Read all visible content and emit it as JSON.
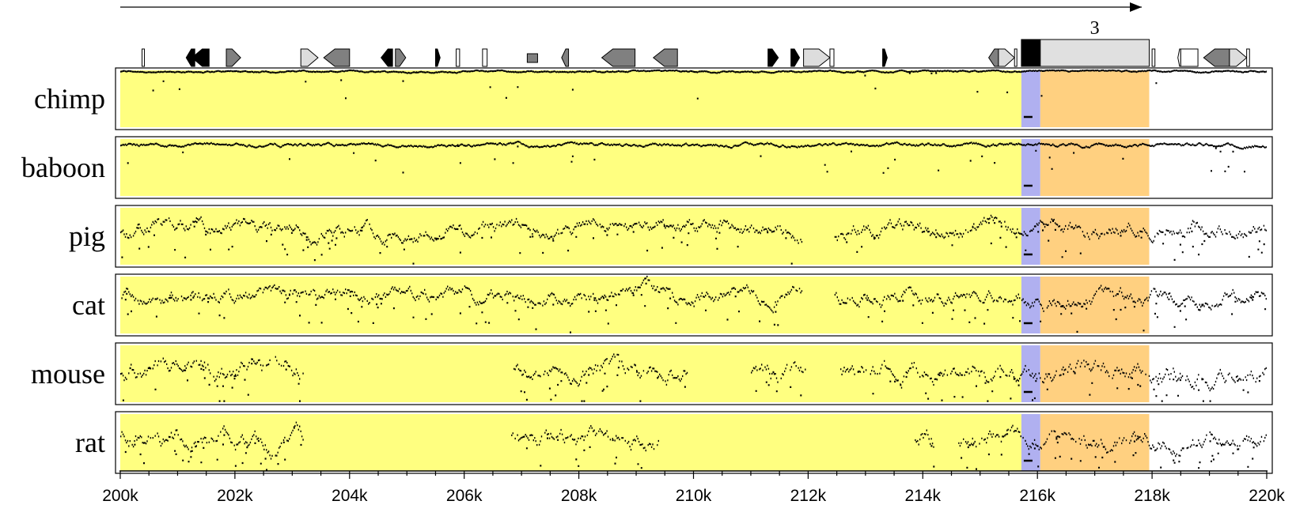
{
  "chart_data": {
    "type": "alignment-track",
    "x_axis": {
      "range_kb": [
        200,
        220
      ],
      "major_ticks_kb": [
        200,
        202,
        204,
        206,
        208,
        210,
        212,
        214,
        216,
        218,
        220
      ],
      "tick_labels": [
        "200k",
        "202k",
        "204k",
        "206k",
        "208k",
        "210k",
        "212k",
        "214k",
        "216k",
        "218k",
        "220k"
      ],
      "minor_tick_step_kb": 0.5
    },
    "orientation": "forward",
    "gene_features": [
      {
        "type": "tall",
        "start_kb": 200.38,
        "end_kb": 200.42,
        "fill": "#ffffff"
      },
      {
        "type": "left-arrow",
        "start_kb": 201.15,
        "end_kb": 201.3,
        "fill": "#000000"
      },
      {
        "type": "left-arrow",
        "start_kb": 201.25,
        "end_kb": 201.55,
        "fill": "#000000"
      },
      {
        "type": "right-arrow",
        "start_kb": 201.85,
        "end_kb": 202.1,
        "fill": "#808080"
      },
      {
        "type": "right-arrow",
        "start_kb": 203.15,
        "end_kb": 203.45,
        "fill": "#dddddd"
      },
      {
        "type": "left-arrow",
        "start_kb": 203.55,
        "end_kb": 204.0,
        "fill": "#808080"
      },
      {
        "type": "left-arrow",
        "start_kb": 204.55,
        "end_kb": 204.75,
        "fill": "#000000"
      },
      {
        "type": "right-arrow",
        "start_kb": 204.8,
        "end_kb": 204.98,
        "fill": "#808080"
      },
      {
        "type": "right-arrow",
        "start_kb": 205.5,
        "end_kb": 205.58,
        "fill": "#000000"
      },
      {
        "type": "tall",
        "start_kb": 205.86,
        "end_kb": 205.92,
        "fill": "#ffffff"
      },
      {
        "type": "tall",
        "start_kb": 206.32,
        "end_kb": 206.4,
        "fill": "#ffffff"
      },
      {
        "type": "box",
        "start_kb": 207.1,
        "end_kb": 207.28,
        "fill": "#808080"
      },
      {
        "type": "left-arrow",
        "start_kb": 207.7,
        "end_kb": 207.82,
        "fill": "#808080"
      },
      {
        "type": "left-arrow",
        "start_kb": 208.4,
        "end_kb": 208.98,
        "fill": "#808080"
      },
      {
        "type": "left-arrow",
        "start_kb": 209.3,
        "end_kb": 209.72,
        "fill": "#808080"
      },
      {
        "type": "right-arrow",
        "start_kb": 211.3,
        "end_kb": 211.48,
        "fill": "#000000"
      },
      {
        "type": "right-arrow",
        "start_kb": 211.7,
        "end_kb": 211.85,
        "fill": "#000000"
      },
      {
        "type": "right-arrow",
        "start_kb": 211.92,
        "end_kb": 212.38,
        "fill": "#dddddd"
      },
      {
        "type": "tall",
        "start_kb": 212.38,
        "end_kb": 212.45,
        "fill": "#ffffff"
      },
      {
        "type": "right-arrow",
        "start_kb": 213.3,
        "end_kb": 213.38,
        "fill": "#000000"
      },
      {
        "type": "left-arrow",
        "start_kb": 215.15,
        "end_kb": 215.32,
        "fill": "#808080"
      },
      {
        "type": "right-arrow",
        "start_kb": 215.32,
        "end_kb": 215.6,
        "fill": "#dddddd"
      },
      {
        "type": "tall",
        "start_kb": 215.6,
        "end_kb": 215.64,
        "fill": "#ffffff"
      },
      {
        "type": "exon-utr",
        "start_kb": 215.72,
        "end_kb": 216.05,
        "fill": "#000000"
      },
      {
        "type": "exon",
        "start_kb": 216.05,
        "end_kb": 217.95,
        "fill": "#e0e0e0",
        "label": "3"
      },
      {
        "type": "tall",
        "start_kb": 218.0,
        "end_kb": 218.05,
        "fill": "#ffffff"
      },
      {
        "type": "left-arrow",
        "start_kb": 218.45,
        "end_kb": 218.5,
        "fill": "#ffffff"
      },
      {
        "type": "tall",
        "start_kb": 218.5,
        "end_kb": 218.8,
        "fill": "#ffffff"
      },
      {
        "type": "left-arrow",
        "start_kb": 218.9,
        "end_kb": 219.35,
        "fill": "#808080"
      },
      {
        "type": "right-arrow",
        "start_kb": 219.35,
        "end_kb": 219.65,
        "fill": "#dddddd"
      },
      {
        "type": "tall",
        "start_kb": 219.65,
        "end_kb": 219.7,
        "fill": "#ffffff"
      }
    ],
    "region_colors": {
      "intron": "#ffff80",
      "utr": "#b0b0f0",
      "exon": "#ffd080"
    },
    "highlight_regions": [
      {
        "kind": "utr",
        "start_kb": 215.72,
        "end_kb": 216.05
      },
      {
        "kind": "exon",
        "start_kb": 216.05,
        "end_kb": 217.95
      }
    ],
    "species": [
      {
        "name": "chimp",
        "intron_start_kb": 200.0,
        "intron_end_kb": 215.72,
        "conservation": "very high",
        "base_level": 0.98,
        "noise": 0.02,
        "gaps_kb": [],
        "dropout": 0.0
      },
      {
        "name": "baboon",
        "intron_start_kb": 200.0,
        "intron_end_kb": 215.72,
        "conservation": "high",
        "base_level": 0.9,
        "noise": 0.04,
        "gaps_kb": [],
        "dropout": 0.0
      },
      {
        "name": "pig",
        "intron_start_kb": 200.0,
        "intron_end_kb": 215.72,
        "conservation": "medium",
        "base_level": 0.62,
        "noise": 0.16,
        "gaps_kb": [
          [
            211.9,
            212.45
          ]
        ],
        "dropout": 0.05
      },
      {
        "name": "cat",
        "intron_start_kb": 200.0,
        "intron_end_kb": 215.72,
        "conservation": "medium",
        "base_level": 0.66,
        "noise": 0.16,
        "gaps_kb": [
          [
            211.9,
            212.45
          ]
        ],
        "dropout": 0.05
      },
      {
        "name": "mouse",
        "intron_start_kb": 200.0,
        "intron_end_kb": 215.72,
        "conservation": "low",
        "base_level": 0.55,
        "noise": 0.2,
        "gaps_kb": [
          [
            203.2,
            206.85
          ],
          [
            209.9,
            211.0
          ],
          [
            211.95,
            212.55
          ]
        ],
        "dropout": 0.15
      },
      {
        "name": "rat",
        "intron_start_kb": 200.0,
        "intron_end_kb": 215.72,
        "conservation": "low",
        "base_level": 0.52,
        "noise": 0.2,
        "gaps_kb": [
          [
            203.2,
            206.8
          ],
          [
            209.4,
            213.85
          ],
          [
            214.2,
            214.6
          ]
        ],
        "dropout": 0.15
      }
    ]
  }
}
